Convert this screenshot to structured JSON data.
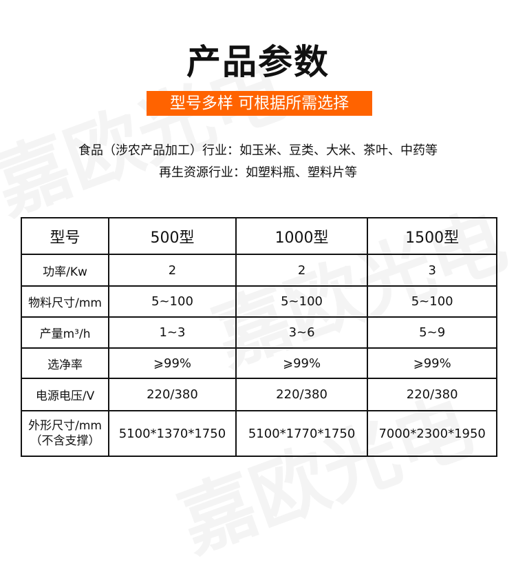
{
  "watermark": "嘉欧光电",
  "title": "产品参数",
  "badge": "型号多样 可根据所需选择",
  "description": [
    "食品（涉农产品加工）行业：如玉米、豆类、大米、茶叶、中药等",
    "再生资源行业：如塑料瓶、塑料片等"
  ],
  "table": {
    "headers": [
      "型号",
      "500型",
      "1000型",
      "1500型"
    ],
    "rows": [
      [
        "功率/Kw",
        "2",
        "2",
        "3"
      ],
      [
        "物料尺寸/mm",
        "5~100",
        "5~100",
        "5~100"
      ],
      [
        "产量m³/h",
        "1~3",
        "3~6",
        "5~9"
      ],
      [
        "选净率",
        "⩾99%",
        "⩾99%",
        "⩾99%"
      ],
      [
        "电源电压/V",
        "220/380",
        "220/380",
        "220/380"
      ],
      [
        "外形尺寸/mm\n（不含支撑）",
        "5100*1370*1750",
        "5100*1770*1750",
        "7000*2300*1950"
      ]
    ]
  },
  "colors": {
    "accent": "#ff6300"
  }
}
